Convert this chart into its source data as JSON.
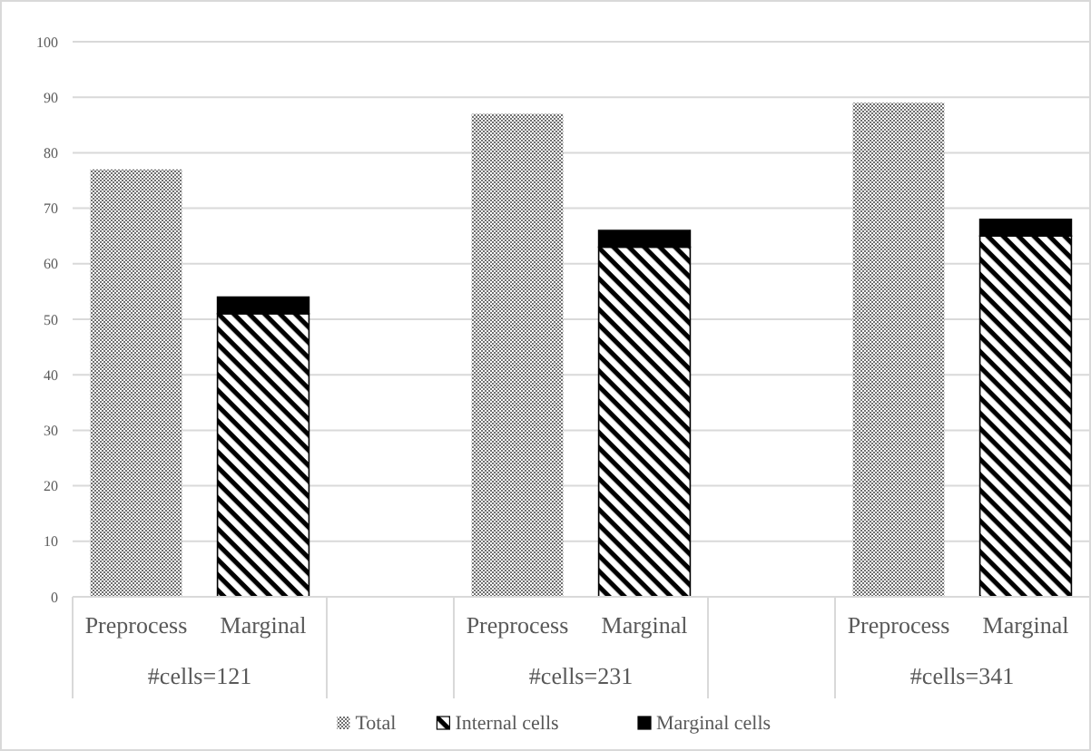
{
  "chart_data": {
    "type": "bar",
    "stacked": true,
    "categories": [
      "Preprocess",
      "Marginal",
      null,
      "Preprocess",
      "Marginal",
      null,
      "Preprocess",
      "Marginal"
    ],
    "annotations": [
      "#cells=121",
      "#cells=231",
      "#cells=341"
    ],
    "series": [
      {
        "name": "Total",
        "color": "#707070",
        "values": [
          77,
          null,
          null,
          87,
          null,
          null,
          89,
          null
        ]
      },
      {
        "name": "Internal cells",
        "color": "#000000",
        "values": [
          null,
          51,
          null,
          null,
          63,
          null,
          null,
          65
        ]
      },
      {
        "name": "Marginal cells",
        "color": "#000000",
        "values": [
          null,
          3,
          null,
          null,
          3,
          null,
          null,
          3
        ]
      }
    ],
    "ylim": [
      0,
      100
    ],
    "yticks": [
      0,
      10,
      20,
      30,
      40,
      50,
      60,
      70,
      80,
      90,
      100
    ],
    "grid": "y",
    "legend": "bottom"
  }
}
